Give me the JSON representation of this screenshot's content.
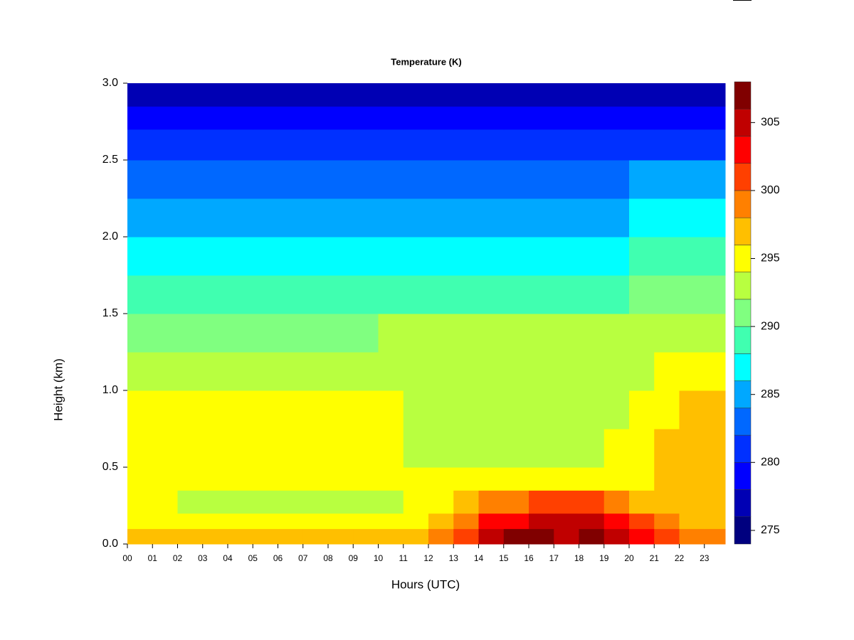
{
  "chart_data": {
    "type": "contour",
    "title": "Temperature (K)",
    "x_label": "Hours (UTC)",
    "y_label": "Height (km)",
    "xlim": [
      0,
      23.83
    ],
    "ylim": [
      0,
      3.0
    ],
    "xticks": [
      {
        "value": 0,
        "label": "00"
      },
      {
        "value": 1,
        "label": "01"
      },
      {
        "value": 2,
        "label": "02"
      },
      {
        "value": 3,
        "label": "03"
      },
      {
        "value": 4,
        "label": "04"
      },
      {
        "value": 5,
        "label": "05"
      },
      {
        "value": 6,
        "label": "06"
      },
      {
        "value": 7,
        "label": "07"
      },
      {
        "value": 8,
        "label": "08"
      },
      {
        "value": 9,
        "label": "09"
      },
      {
        "value": 10,
        "label": "10"
      },
      {
        "value": 11,
        "label": "11"
      },
      {
        "value": 12,
        "label": "12"
      },
      {
        "value": 13,
        "label": "13"
      },
      {
        "value": 14,
        "label": "14"
      },
      {
        "value": 15,
        "label": "15"
      },
      {
        "value": 16,
        "label": "16"
      },
      {
        "value": 17,
        "label": "17"
      },
      {
        "value": 18,
        "label": "18"
      },
      {
        "value": 19,
        "label": "19"
      },
      {
        "value": 20,
        "label": "20"
      },
      {
        "value": 21,
        "label": "21"
      },
      {
        "value": 22,
        "label": "22"
      },
      {
        "value": 23,
        "label": "23"
      }
    ],
    "yticks": [
      {
        "value": 0,
        "label": "0.0"
      },
      0.5,
      {
        "value": 1,
        "label": "1.0"
      },
      1.5,
      {
        "value": 2,
        "label": "2.0"
      },
      2.5,
      {
        "value": 3,
        "label": "3.0"
      }
    ],
    "levels": [
      274,
      276,
      278,
      280,
      282,
      284,
      286,
      288,
      290,
      292,
      294,
      296,
      298,
      300,
      302,
      304,
      306,
      308
    ],
    "colors": [
      "#00007f",
      "#0000b4",
      "#0000ff",
      "#0030ff",
      "#0068ff",
      "#00a8ff",
      "#00ffff",
      "#40ffb0",
      "#80ff80",
      "#b8ff40",
      "#ffff00",
      "#ffbf00",
      "#ff8000",
      "#ff4000",
      "#ff0000",
      "#c00000",
      "#800000"
    ],
    "colorbar_ticks": [
      275,
      280,
      285,
      290,
      295,
      300,
      305
    ],
    "x": [
      0,
      1,
      2,
      3,
      4,
      5,
      6,
      7,
      8,
      9,
      10,
      11,
      12,
      13,
      14,
      15,
      16,
      17,
      18,
      19,
      20,
      21,
      22,
      23
    ],
    "y": [
      0,
      0.1,
      0.2,
      0.35,
      0.5,
      0.75,
      1.0,
      1.25,
      1.5,
      1.75,
      2.0,
      2.25,
      2.5,
      2.7,
      2.85
    ],
    "z": [
      [
        297,
        297,
        297,
        297,
        297,
        297,
        297,
        297,
        297,
        297,
        297,
        297,
        299,
        301,
        305,
        306,
        306,
        305,
        306,
        305,
        302,
        300,
        299,
        299
      ],
      [
        295,
        295,
        295,
        295,
        295,
        295,
        295,
        295,
        295,
        295,
        295,
        295,
        296,
        299,
        302,
        303,
        304,
        304,
        304,
        303,
        300,
        298,
        297,
        297
      ],
      [
        295,
        295,
        293,
        293,
        293,
        293,
        293,
        293,
        293,
        293,
        293,
        295,
        295,
        296,
        298,
        299,
        300,
        300,
        300,
        299,
        297,
        297,
        297,
        297
      ],
      [
        295,
        295,
        295,
        295,
        295,
        295,
        295,
        295,
        295,
        295,
        295,
        295,
        295,
        295,
        295,
        295,
        295,
        295,
        295,
        295,
        295,
        297,
        297,
        297
      ],
      [
        295,
        295,
        295,
        295,
        295,
        295,
        295,
        295,
        295,
        295,
        295,
        293,
        293,
        293,
        293,
        293,
        293,
        293,
        293,
        295,
        295,
        297,
        297,
        297
      ],
      [
        295,
        295,
        295,
        295,
        295,
        295,
        295,
        295,
        295,
        295,
        295,
        293,
        293,
        293,
        293,
        293,
        293,
        293,
        293,
        293,
        295,
        295,
        297,
        297
      ],
      [
        293,
        293,
        293,
        293,
        293,
        293,
        293,
        293,
        293,
        293,
        293,
        293,
        293,
        293,
        293,
        293,
        293,
        293,
        293,
        293,
        293,
        295,
        295,
        295
      ],
      [
        291,
        291,
        291,
        291,
        291,
        291,
        291,
        291,
        291,
        291,
        293,
        293,
        293,
        293,
        293,
        293,
        293,
        293,
        293,
        293,
        293,
        293,
        293,
        293
      ],
      [
        289,
        289,
        289,
        289,
        289,
        289,
        289,
        289,
        289,
        289,
        289,
        289,
        289,
        289,
        289,
        289,
        289,
        289,
        289,
        289,
        291,
        291,
        291,
        291
      ],
      [
        287,
        287,
        287,
        287,
        287,
        287,
        287,
        287,
        287,
        287,
        287,
        287,
        287,
        287,
        287,
        287,
        287,
        287,
        287,
        287,
        289,
        289,
        289,
        289
      ],
      [
        285,
        285,
        285,
        285,
        285,
        285,
        285,
        285,
        285,
        285,
        285,
        285,
        285,
        285,
        285,
        285,
        285,
        285,
        285,
        285,
        287,
        287,
        287,
        287
      ],
      [
        283,
        283,
        283,
        283,
        283,
        283,
        283,
        283,
        283,
        283,
        283,
        283,
        283,
        283,
        283,
        283,
        283,
        283,
        283,
        283,
        285,
        285,
        285,
        285
      ],
      [
        281,
        281,
        281,
        281,
        281,
        281,
        281,
        281,
        281,
        281,
        281,
        281,
        281,
        281,
        281,
        281,
        281,
        281,
        281,
        281,
        281,
        281,
        281,
        281
      ],
      [
        279,
        279,
        279,
        279,
        279,
        279,
        279,
        279,
        279,
        279,
        279,
        279,
        279,
        279,
        279,
        279,
        279,
        279,
        279,
        279,
        279,
        279,
        279,
        279
      ],
      [
        277,
        277,
        277,
        277,
        277,
        277,
        277,
        277,
        277,
        277,
        277,
        277,
        277,
        277,
        277,
        277,
        277,
        277,
        277,
        277,
        277,
        277,
        277,
        277
      ]
    ]
  }
}
